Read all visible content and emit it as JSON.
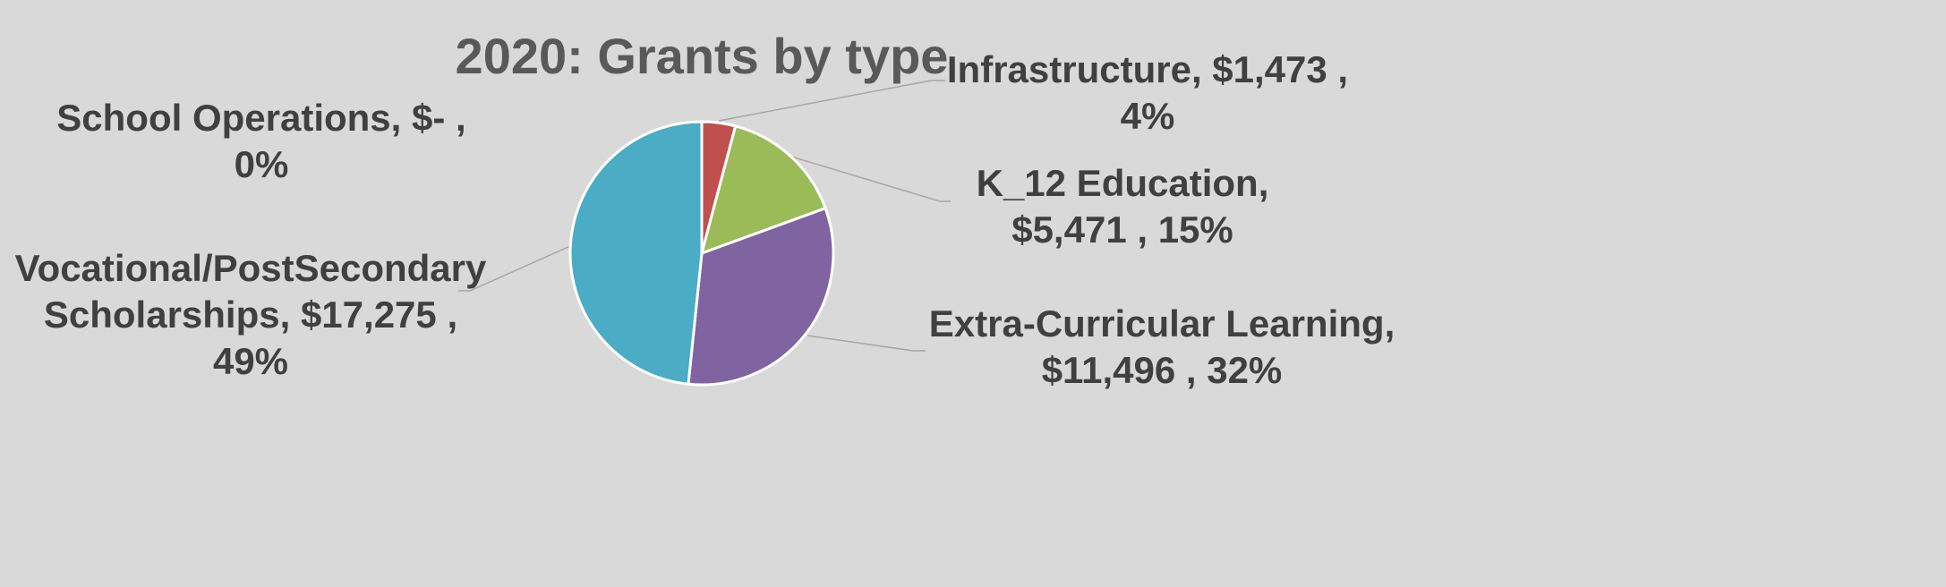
{
  "chart_data": {
    "type": "pie",
    "title": "2020: Grants by type",
    "categories": [
      "School Operations,",
      "Infrastructure,",
      "K_12 Education,",
      "Extra-Curricular Learning,",
      "Vocational/PostSecondary Scholarships,"
    ],
    "values": [
      0,
      1473,
      5471,
      11496,
      17275
    ],
    "value_labels": [
      "$-   ,",
      "$1,473 ,",
      "$5,471 ,",
      "$11,496 ,",
      "$17,275 ,"
    ],
    "percents": [
      0,
      4,
      15,
      32,
      49
    ],
    "percent_labels": [
      "0%",
      "4%",
      "15%",
      "32%",
      "49%"
    ],
    "colors": [
      "#4f81bd",
      "#c0504d",
      "#9bbb59",
      "#8064a2",
      "#4bacc6"
    ]
  }
}
